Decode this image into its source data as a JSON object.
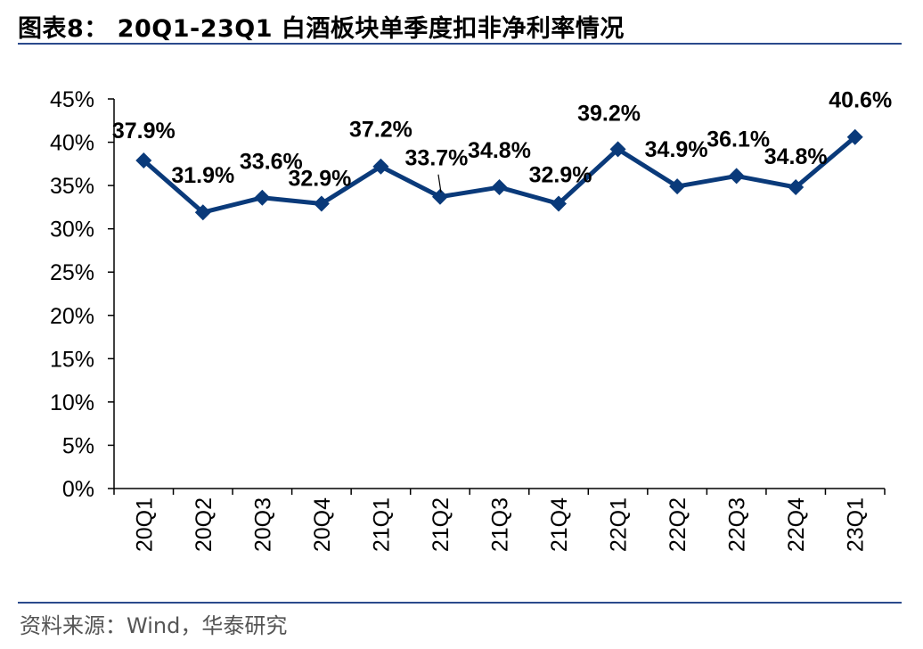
{
  "title": "图表8：  20Q1-23Q1 白酒板块单季度扣非净利率情况",
  "source": "资料来源：Wind，华泰研究",
  "chart_data": {
    "type": "line",
    "categories": [
      "20Q1",
      "20Q2",
      "20Q3",
      "20Q4",
      "21Q1",
      "21Q2",
      "21Q3",
      "21Q4",
      "22Q1",
      "22Q2",
      "22Q3",
      "22Q4",
      "23Q1"
    ],
    "values": [
      37.9,
      31.9,
      33.6,
      32.9,
      37.2,
      33.7,
      34.8,
      32.9,
      39.2,
      34.9,
      36.1,
      34.8,
      40.6
    ],
    "data_labels": [
      "37.9%",
      "31.9%",
      "33.6%",
      "32.9%",
      "37.2%",
      "33.7%",
      "34.8%",
      "32.9%",
      "39.2%",
      "34.9%",
      "36.1%",
      "34.8%",
      "40.6%"
    ],
    "yticks": [
      "0%",
      "5%",
      "10%",
      "15%",
      "20%",
      "25%",
      "30%",
      "35%",
      "40%",
      "45%"
    ],
    "ylim": [
      0,
      45
    ],
    "ystep": 5,
    "series_name": "扣非净利率",
    "color": "#0a3a7a",
    "xlabel": "",
    "ylabel": "",
    "grid": false,
    "legend": "none"
  }
}
